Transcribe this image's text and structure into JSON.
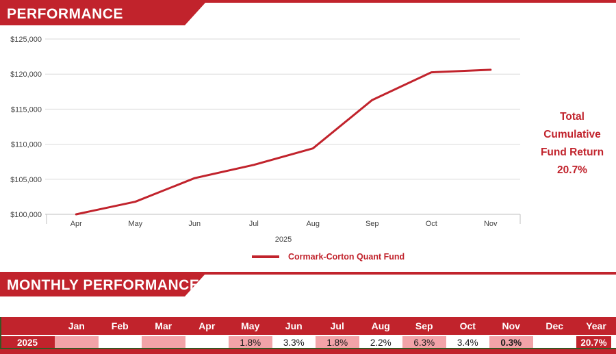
{
  "page": {
    "accent_red": "#C1232C",
    "row_pink": "#F2A3A8",
    "border_green": "#375623",
    "grid_gray": "#D9D9D9",
    "axis_gray": "#BFBFBF",
    "tick_text_gray": "#404040"
  },
  "sections": {
    "performance_title": "PERFORMANCE",
    "monthly_title": "MONTHLY PERFORMANCE"
  },
  "chart_data": {
    "type": "line",
    "title": "",
    "x": [
      "Apr",
      "May",
      "Jun",
      "Jul",
      "Aug",
      "Sep",
      "Oct",
      "Nov"
    ],
    "x_axis_group_label": "2025",
    "series": [
      {
        "name": "Cormark-Corton Quant Fund",
        "values": [
          100000,
          101800,
          105159,
          107052,
          109407,
          116300,
          120254,
          120615
        ]
      }
    ],
    "ylim": [
      100000,
      125000
    ],
    "ytick_step": 5000,
    "ytick_prefix": "$",
    "grid": true,
    "legend_position": "bottom"
  },
  "summary": {
    "text": "Total\nCumulative\nFund Return\n20.7%"
  },
  "monthly_table": {
    "columns": [
      "Jan",
      "Feb",
      "Mar",
      "Apr",
      "May",
      "Jun",
      "Jul",
      "Aug",
      "Sep",
      "Oct",
      "Nov",
      "Dec",
      "Year"
    ],
    "rows": [
      {
        "label": "2025",
        "values": [
          "",
          "",
          "",
          "",
          "1.8%",
          "3.3%",
          "1.8%",
          "2.2%",
          "6.3%",
          "3.4%",
          "0.3%",
          "",
          "20.7%"
        ]
      }
    ]
  }
}
